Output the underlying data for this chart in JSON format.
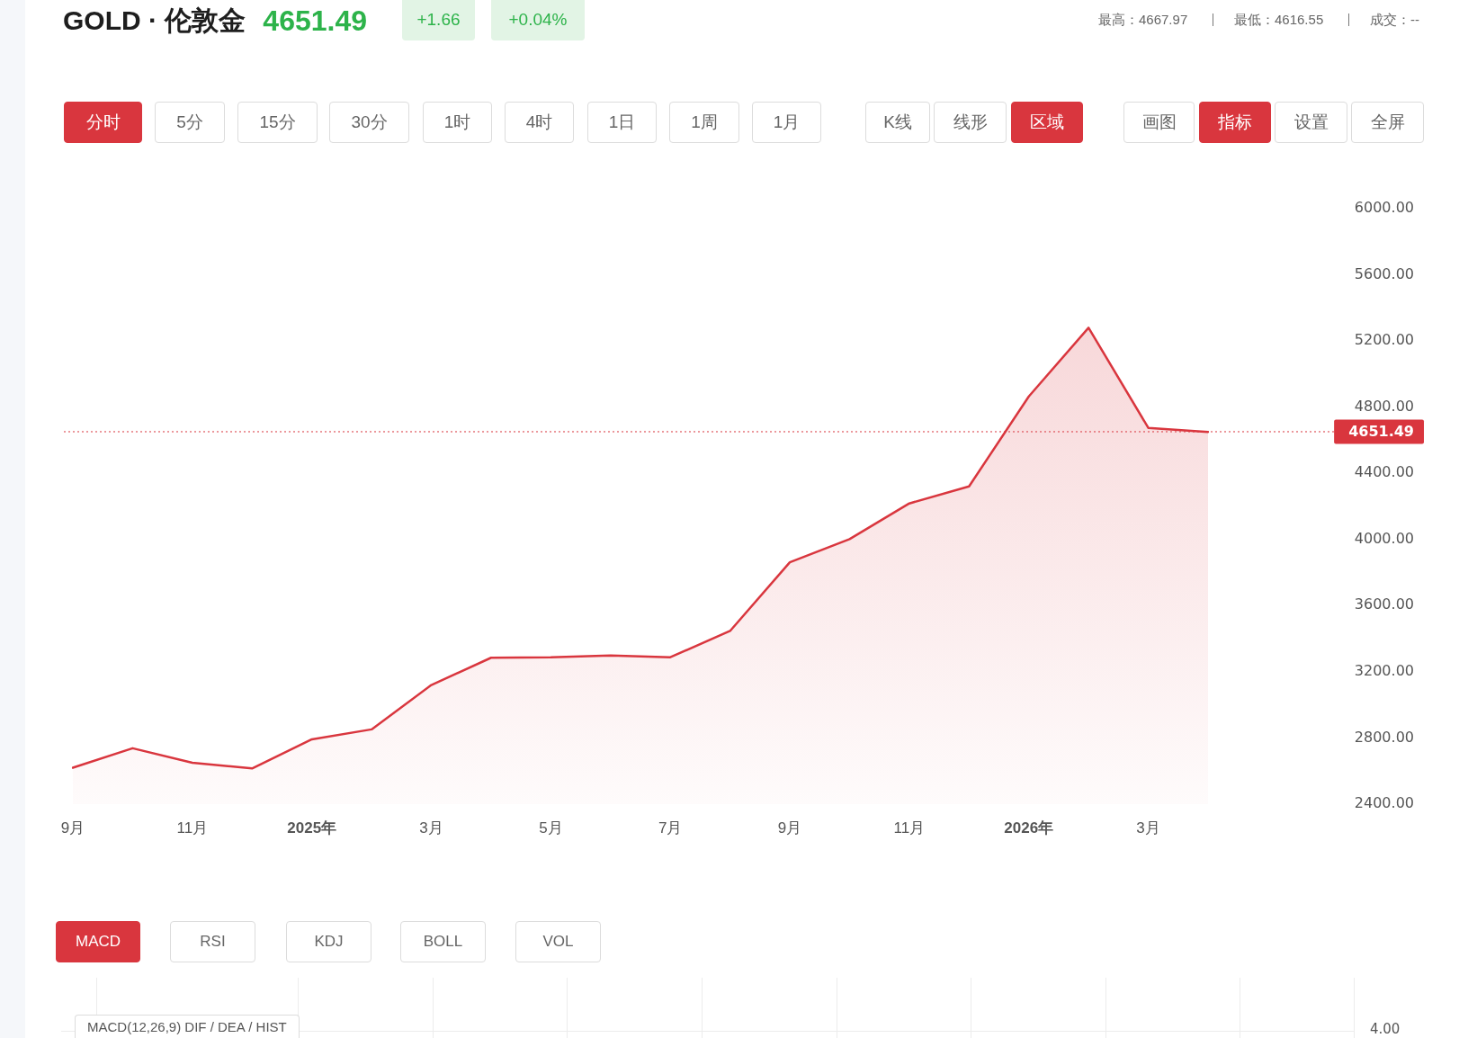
{
  "chart_data": {
    "type": "area",
    "title": "GOLD · 伦敦金",
    "subtitle": "4651.49",
    "categories": [
      "9月",
      null,
      "11月",
      null,
      "2025年",
      null,
      "3月",
      null,
      "5月",
      null,
      "7月",
      null,
      "9月",
      null,
      "11月",
      null,
      "2026年",
      null,
      "3月",
      null
    ],
    "values": [
      2620,
      2738,
      2650,
      2616,
      2792,
      2852,
      3120,
      3285,
      3288,
      3299,
      3288,
      3447,
      3862,
      4002,
      4218,
      4321,
      4865,
      5280,
      4675,
      4650
    ],
    "color": "#d9363e",
    "ylim": [
      2400,
      6000
    ],
    "yticks": [
      {
        "value": 2400,
        "label": "2400.00"
      },
      {
        "value": 2800,
        "label": "2800.00"
      },
      {
        "value": 3200,
        "label": "3200.00"
      },
      {
        "value": 3600,
        "label": "3600.00"
      },
      {
        "value": 4000,
        "label": "4000.00"
      },
      {
        "value": 4400,
        "label": "4400.00"
      },
      {
        "value": 4800,
        "label": "4800.00"
      },
      {
        "value": 5200,
        "label": "5200.00"
      },
      {
        "value": 5600,
        "label": "5600.00"
      },
      {
        "value": 6000,
        "label": "6000.00"
      }
    ],
    "ref_lines": [
      {
        "axis": "y",
        "value": 4651.49,
        "label": "4651.49",
        "color": "#d9363e",
        "line_style": "dotted"
      }
    ],
    "grid": false,
    "legend": false,
    "marker": "none",
    "line_style": "solid",
    "annotations": [
      "+1.66",
      "+0.04%",
      "最高：4667.97",
      "最低：4616.55",
      "成交：--",
      "分时",
      "5分",
      "15分",
      "30分",
      "1时",
      "4时",
      "1日",
      "1周",
      "1月",
      "K线",
      "线形",
      "区域",
      "画图",
      "指标",
      "设置",
      "全屏",
      "MACD",
      "RSI",
      "KDJ",
      "BOLL",
      "VOL",
      "MACD(12,26,9) DIF / DEA / HIST",
      "4.00"
    ]
  }
}
